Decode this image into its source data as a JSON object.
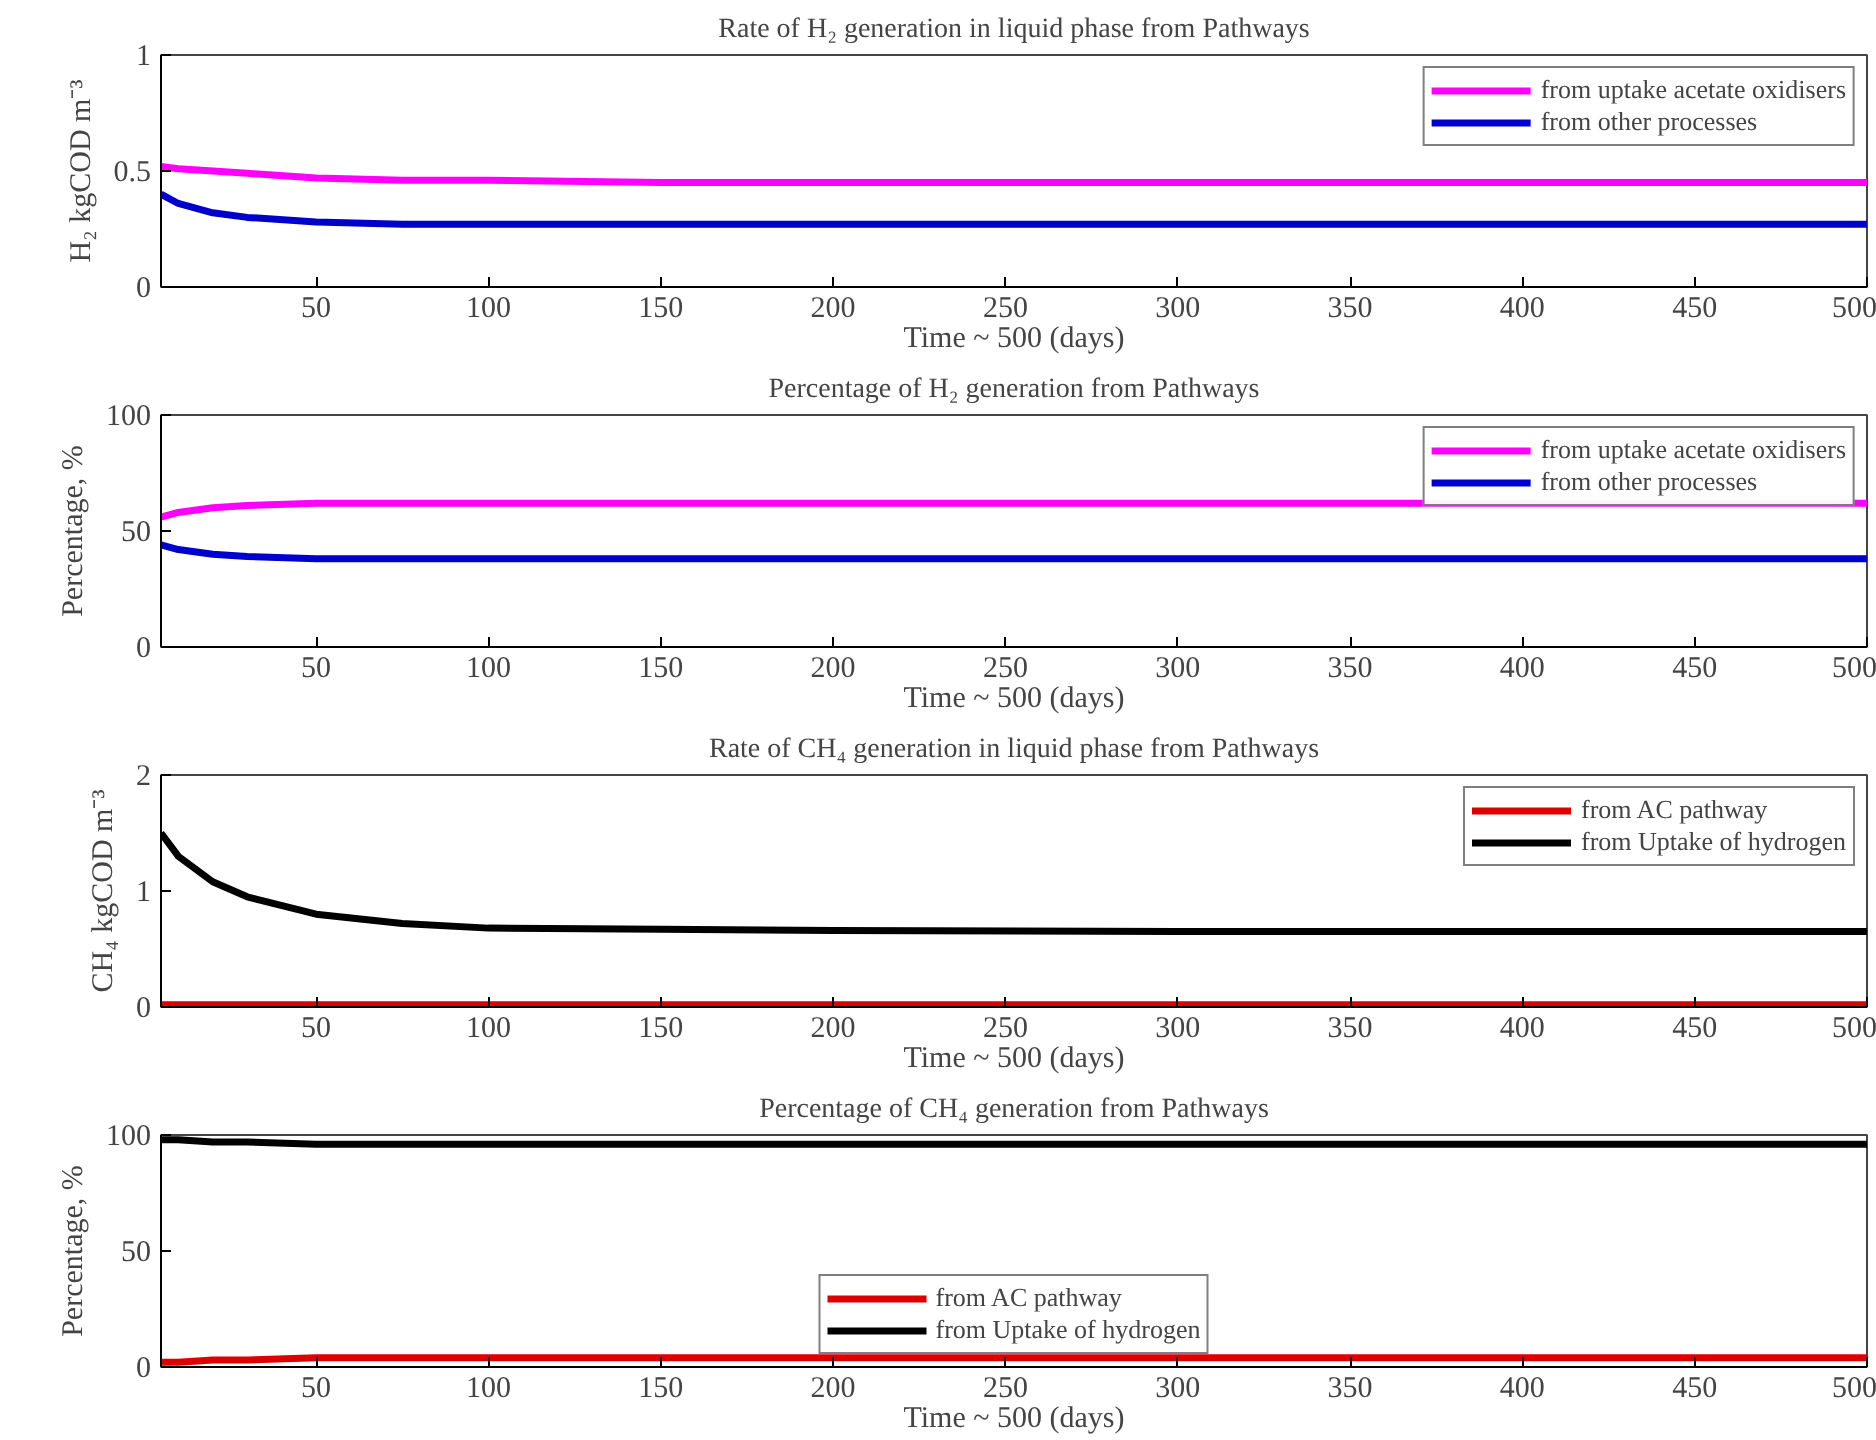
{
  "chart_data": [
    {
      "type": "line",
      "title": "Rate of H₂ generation in liquid phase from Pathways",
      "xlabel": "Time ~ 500 (days)",
      "ylabel": "H₂ kgCOD m⁻³",
      "xlim": [
        5,
        500
      ],
      "xticks": [
        50,
        100,
        150,
        200,
        250,
        300,
        350,
        400,
        450,
        500
      ],
      "ylim": [
        0,
        1
      ],
      "yticks": [
        0,
        0.5,
        1
      ],
      "grid": false,
      "legend": "top right",
      "x": [
        5,
        10,
        20,
        30,
        50,
        75,
        100,
        150,
        200,
        300,
        400,
        500
      ],
      "series": [
        {
          "name": "from uptake acetate oxidisers",
          "color": "#ff00ff",
          "values": [
            0.52,
            0.51,
            0.5,
            0.49,
            0.47,
            0.46,
            0.46,
            0.45,
            0.45,
            0.45,
            0.45,
            0.45
          ]
        },
        {
          "name": "from other processes",
          "color": "#0000cc",
          "values": [
            0.4,
            0.36,
            0.32,
            0.3,
            0.28,
            0.27,
            0.27,
            0.27,
            0.27,
            0.27,
            0.27,
            0.27
          ]
        }
      ]
    },
    {
      "type": "line",
      "title": "Percentage of H₂ generation from Pathways",
      "xlabel": "Time ~ 500 (days)",
      "ylabel": "Percentage, %",
      "xlim": [
        5,
        500
      ],
      "xticks": [
        50,
        100,
        150,
        200,
        250,
        300,
        350,
        400,
        450,
        500
      ],
      "ylim": [
        0,
        100
      ],
      "yticks": [
        0,
        50,
        100
      ],
      "grid": false,
      "legend": "top right",
      "x": [
        5,
        10,
        20,
        30,
        50,
        75,
        100,
        150,
        200,
        300,
        400,
        500
      ],
      "series": [
        {
          "name": "from uptake acetate oxidisers",
          "color": "#ff00ff",
          "values": [
            56,
            58,
            60,
            61,
            62,
            62,
            62,
            62,
            62,
            62,
            62,
            62
          ]
        },
        {
          "name": "from other processes",
          "color": "#0000cc",
          "values": [
            44,
            42,
            40,
            39,
            38,
            38,
            38,
            38,
            38,
            38,
            38,
            38
          ]
        }
      ]
    },
    {
      "type": "line",
      "title": "Rate of CH₄ generation in liquid phase from Pathways",
      "xlabel": "Time ~ 500 (days)",
      "ylabel": "CH₄ kgCOD m⁻³",
      "xlim": [
        5,
        500
      ],
      "xticks": [
        50,
        100,
        150,
        200,
        250,
        300,
        350,
        400,
        450,
        500
      ],
      "ylim": [
        0,
        2
      ],
      "yticks": [
        0,
        1,
        2
      ],
      "grid": false,
      "legend": "top right",
      "x": [
        5,
        10,
        20,
        30,
        50,
        75,
        100,
        150,
        200,
        300,
        400,
        500
      ],
      "series": [
        {
          "name": "from AC pathway",
          "color": "#dd0000",
          "values": [
            0.02,
            0.02,
            0.02,
            0.02,
            0.02,
            0.02,
            0.02,
            0.02,
            0.02,
            0.02,
            0.02,
            0.02
          ]
        },
        {
          "name": "from Uptake of hydrogen",
          "color": "#000000",
          "values": [
            1.5,
            1.3,
            1.08,
            0.95,
            0.8,
            0.72,
            0.68,
            0.67,
            0.66,
            0.65,
            0.65,
            0.65
          ]
        }
      ]
    },
    {
      "type": "line",
      "title": "Percentage of CH₄ generation from Pathways",
      "xlabel": "Time ~ 500 (days)",
      "ylabel": "Percentage, %",
      "xlim": [
        5,
        500
      ],
      "xticks": [
        50,
        100,
        150,
        200,
        250,
        300,
        350,
        400,
        450,
        500
      ],
      "ylim": [
        0,
        100
      ],
      "yticks": [
        0,
        50,
        100
      ],
      "grid": false,
      "legend": "bottom",
      "x": [
        5,
        10,
        20,
        30,
        50,
        75,
        100,
        150,
        200,
        300,
        400,
        500
      ],
      "series": [
        {
          "name": "from AC pathway",
          "color": "#dd0000",
          "values": [
            2,
            2,
            3,
            3,
            4,
            4,
            4,
            4,
            4,
            4,
            4,
            4
          ]
        },
        {
          "name": "from Uptake of hydrogen",
          "color": "#000000",
          "values": [
            98,
            98,
            97,
            97,
            96,
            96,
            96,
            96,
            96,
            96,
            96,
            96
          ]
        }
      ]
    }
  ]
}
